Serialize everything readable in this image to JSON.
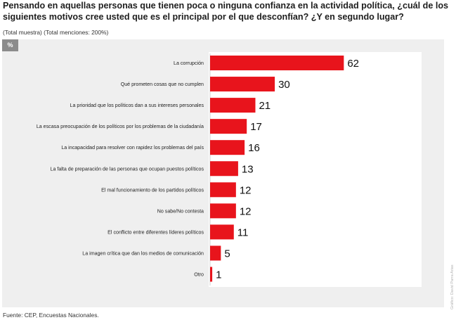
{
  "title": "Pensando en aquellas personas que tienen poca o ninguna confianza en la actividad política, ¿cuál de los siguientes motivos cree usted que es el principal por el que desconfían? ¿Y en segundo lugar?",
  "subtitle": "(Total muestra) (Total menciones: 200%)",
  "unit_badge": "%",
  "source": "Fuente: CEP, Encuestas Nacionales.",
  "credit": "Gráfico: David Parra Arias",
  "colors": {
    "bar": "#e8141c",
    "panel": "#efefef",
    "plot": "#ffffff"
  },
  "chart_data": {
    "type": "bar",
    "orientation": "horizontal",
    "title": "Pensando en aquellas personas que tienen poca o ninguna confianza en la actividad política, ¿cuál de los siguientes motivos cree usted que es el principal por el que desconfían? ¿Y en segundo lugar?",
    "xlabel": "",
    "ylabel": "%",
    "xlim": [
      0,
      100
    ],
    "grid": false,
    "categories": [
      "La corrupción",
      "Qué prometen cosas que no cumplen",
      "La prioridad que los políticos dan a sus intereses personales",
      "La escasa preocupación de los políticos por los problemas de la ciudadanía",
      "La incapacidad para resolver con rapidez los problemas del país",
      "La falta de preparación de las personas que ocupan puestos políticos",
      "El mal funcionamiento de los partidos políticos",
      "No sabe/No contesta",
      "El conflicto entre diferentes líderes políticos",
      "La imagen crítica que dan los medios de comunicación",
      "Otro"
    ],
    "values": [
      62,
      30,
      21,
      17,
      16,
      13,
      12,
      12,
      11,
      5,
      1
    ]
  }
}
